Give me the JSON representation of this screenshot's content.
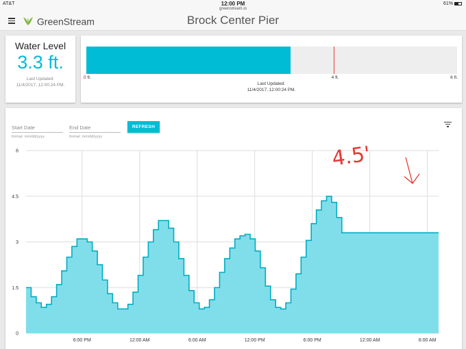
{
  "status_bar": {
    "carrier": "AT&T",
    "time": "12:00 PM",
    "url": "greenstream.io",
    "battery": "61%"
  },
  "header": {
    "logo_text": "GreenStream",
    "page_title": "Brock Center Pier"
  },
  "water_level": {
    "title": "Water Level",
    "value": "3.3 ft.",
    "updated_label": "Last Updated:",
    "updated_time": "11/4/2017, 12:00:24 PM."
  },
  "gauge": {
    "level": 3.3,
    "max": 6,
    "marker": 4,
    "tick_min": "0 ft.",
    "tick_marker": "4 ft.",
    "tick_max": "6 ft.",
    "updated_label": "Last Updated:",
    "updated_time": "11/4/2017, 12:00:24 PM.",
    "fill_color": "#00bcd4",
    "marker_color": "#e53935"
  },
  "filters": {
    "start_placeholder": "Start Date",
    "start_hint": "format: mm/dd/yyyy",
    "end_placeholder": "End Date",
    "end_hint": "format: mm/dd/yyyy",
    "refresh_label": "REFRESH"
  },
  "annotation": {
    "text": "4.5'",
    "color": "#e53935"
  },
  "chart_data": {
    "type": "area",
    "y_ticks": [
      "0",
      "1.5",
      "3",
      "4.5",
      "6"
    ],
    "x_ticks": [
      "6:00 PM",
      "12:00 AM",
      "6:00 AM",
      "12:00 PM",
      "6:00 PM",
      "12:00 AM",
      "6:00 AM"
    ],
    "ylim": [
      0,
      6
    ],
    "grid": true,
    "x": [
      0,
      1,
      2,
      3,
      4,
      5,
      6,
      7,
      8,
      9,
      10,
      11,
      12,
      13,
      14,
      15,
      16,
      17,
      18,
      19,
      20,
      21,
      22,
      23,
      24,
      25,
      26,
      27,
      28,
      29,
      30,
      31,
      32,
      33,
      34,
      35,
      36,
      37,
      38,
      39,
      40,
      41,
      42,
      43,
      44,
      45,
      46,
      47,
      48,
      49,
      50,
      51,
      52,
      53,
      54,
      55,
      56,
      57,
      58,
      59,
      60,
      61,
      62,
      63,
      64,
      65,
      66,
      67,
      68,
      69,
      70,
      71,
      72,
      73,
      74,
      75,
      76,
      77,
      78,
      79,
      80,
      81
    ],
    "values": [
      1.5,
      1.2,
      1.0,
      0.85,
      0.95,
      1.2,
      1.6,
      2.05,
      2.5,
      2.85,
      3.1,
      3.1,
      3.0,
      2.7,
      2.25,
      1.75,
      1.3,
      1.0,
      0.8,
      0.8,
      0.95,
      1.35,
      1.9,
      2.5,
      3.0,
      3.4,
      3.7,
      3.7,
      3.45,
      3.0,
      2.45,
      1.9,
      1.4,
      1.0,
      0.8,
      0.85,
      1.1,
      1.5,
      2.0,
      2.45,
      2.8,
      3.1,
      3.2,
      3.25,
      3.1,
      2.7,
      2.15,
      1.55,
      1.1,
      0.85,
      0.8,
      1.0,
      1.45,
      1.95,
      2.5,
      3.05,
      3.6,
      4.05,
      4.35,
      4.5,
      4.3,
      3.8,
      3.3,
      3.3,
      3.3,
      3.3,
      3.3,
      3.3,
      3.3,
      3.3,
      3.3,
      3.3,
      3.3,
      3.3,
      3.3,
      3.3,
      3.3,
      3.3,
      3.3,
      3.3,
      3.3,
      3.3
    ],
    "fill_color": "#80deea",
    "line_color": "#00acc1"
  }
}
